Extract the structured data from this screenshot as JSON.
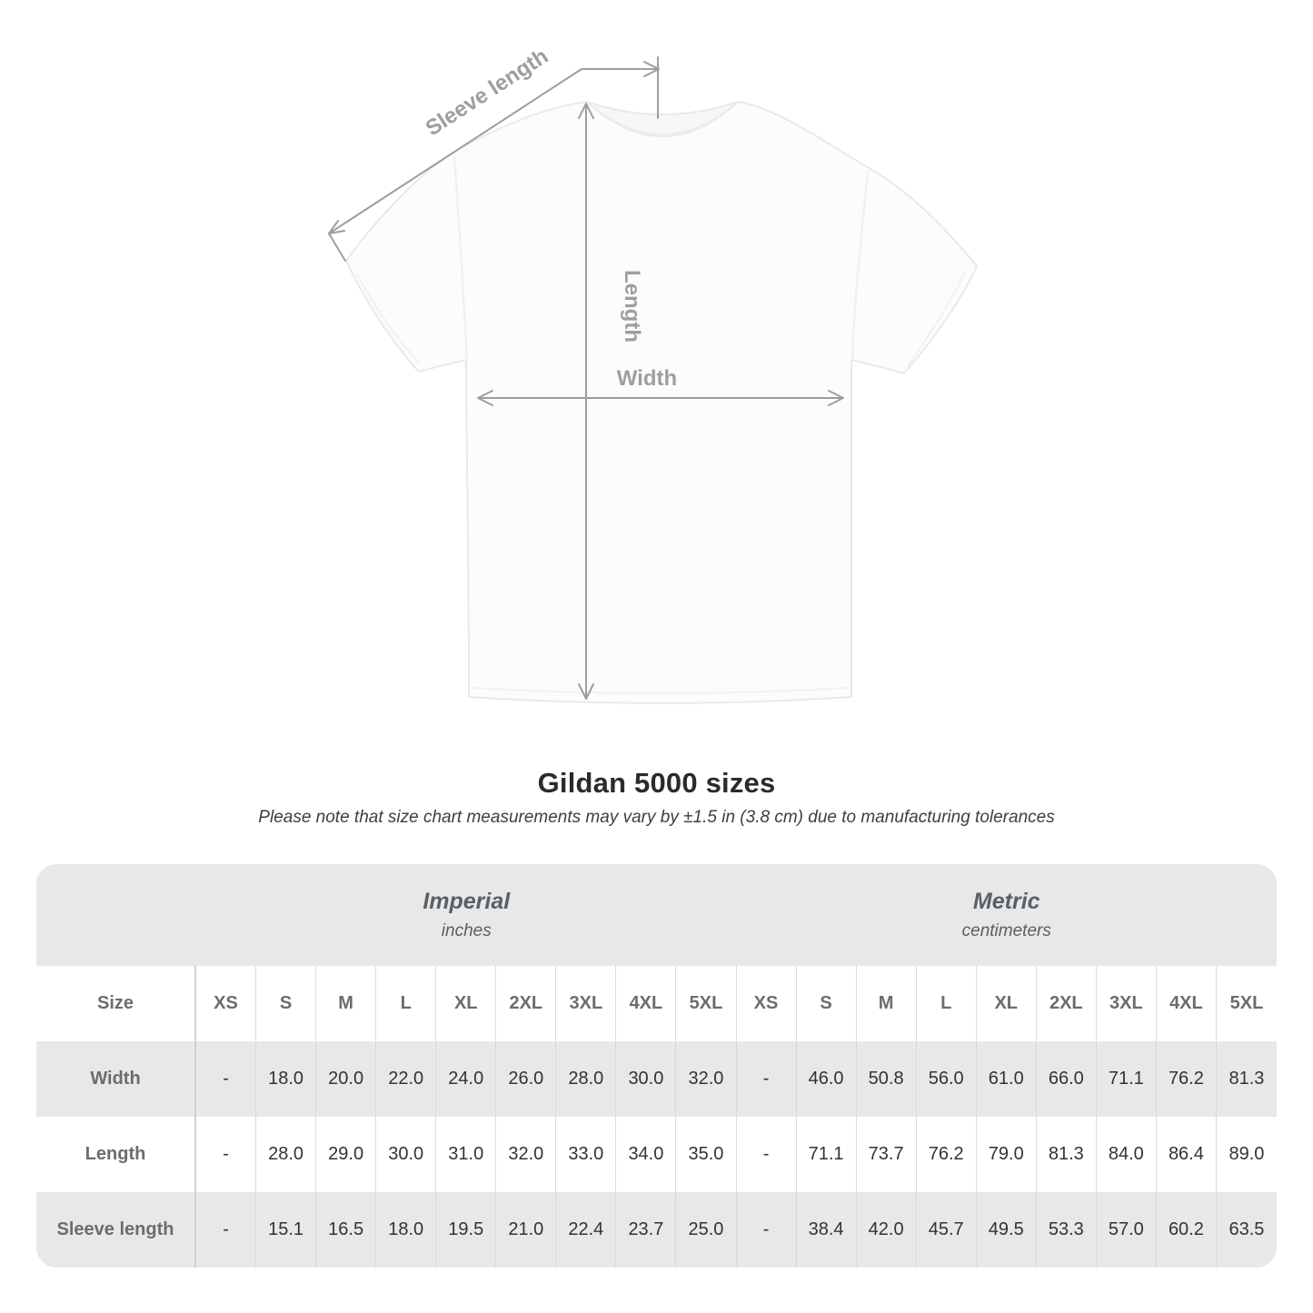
{
  "diagram": {
    "sleeve_label": "Sleeve length",
    "length_label": "Length",
    "width_label": "Width"
  },
  "title": "Gildan 5000 sizes",
  "subtitle": "Please note that size chart measurements may vary by ±1.5 in (3.8 cm) due to manufacturing tolerances",
  "table": {
    "size_header": "Size",
    "groups": [
      {
        "name": "Imperial",
        "unit": "inches"
      },
      {
        "name": "Metric",
        "unit": "centimeters"
      }
    ]
  },
  "chart_data": {
    "type": "table",
    "title": "Gildan 5000 sizes",
    "note": "Measurements may vary by ±1.5 in (3.8 cm)",
    "column_groups": [
      "Imperial (inches)",
      "Metric (centimeters)"
    ],
    "columns": [
      "XS",
      "S",
      "M",
      "L",
      "XL",
      "2XL",
      "3XL",
      "4XL",
      "5XL"
    ],
    "rows": [
      {
        "label": "Width",
        "imperial_in": [
          "-",
          "18.0",
          "20.0",
          "22.0",
          "24.0",
          "26.0",
          "28.0",
          "30.0",
          "32.0"
        ],
        "metric_cm": [
          "-",
          "46.0",
          "50.8",
          "56.0",
          "61.0",
          "66.0",
          "71.1",
          "76.2",
          "81.3"
        ]
      },
      {
        "label": "Length",
        "imperial_in": [
          "-",
          "28.0",
          "29.0",
          "30.0",
          "31.0",
          "32.0",
          "33.0",
          "34.0",
          "35.0"
        ],
        "metric_cm": [
          "-",
          "71.1",
          "73.7",
          "76.2",
          "79.0",
          "81.3",
          "84.0",
          "86.4",
          "89.0"
        ]
      },
      {
        "label": "Sleeve length",
        "imperial_in": [
          "-",
          "15.1",
          "16.5",
          "18.0",
          "19.5",
          "21.0",
          "22.4",
          "23.7",
          "25.0"
        ],
        "metric_cm": [
          "-",
          "38.4",
          "42.0",
          "45.7",
          "49.5",
          "53.3",
          "57.0",
          "60.2",
          "63.5"
        ]
      }
    ]
  }
}
